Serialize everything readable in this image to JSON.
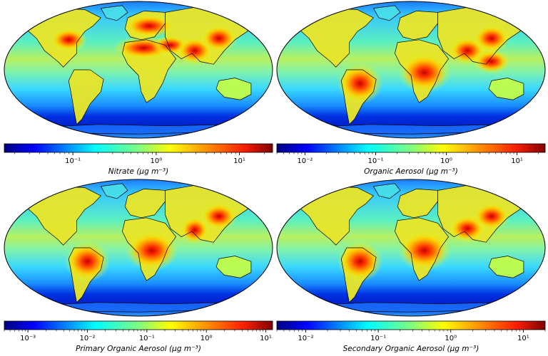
{
  "panels": [
    {
      "id": "nitrate",
      "label": "Nitrate (μg m⁻³)",
      "ticks": [
        {
          "text": "10⁻¹",
          "value": 0.1
        },
        {
          "text": "10⁰",
          "value": 1
        },
        {
          "text": "10¹",
          "value": 10
        }
      ],
      "scale_min": 0.015,
      "scale_max": 25,
      "hotspots": [
        "Europe",
        "North Africa",
        "Middle East",
        "South Asia",
        "East China",
        "Eastern United States"
      ]
    },
    {
      "id": "organic-aerosol",
      "label": "Organic Aerosol (μg m⁻³)",
      "ticks": [
        {
          "text": "10⁻²",
          "value": 0.01
        },
        {
          "text": "10⁻¹",
          "value": 0.1
        },
        {
          "text": "10⁰",
          "value": 1
        },
        {
          "text": "10¹",
          "value": 10
        }
      ],
      "scale_min": 0.004,
      "scale_max": 25,
      "hotspots": [
        "Central Africa",
        "South America",
        "South Asia",
        "East China",
        "Southeast Asia"
      ]
    },
    {
      "id": "primary-organic-aerosol",
      "label": "Primary Organic Aerosol (μg m⁻³)",
      "ticks": [
        {
          "text": "10⁻³",
          "value": 0.001
        },
        {
          "text": "10⁻²",
          "value": 0.01
        },
        {
          "text": "10⁻¹",
          "value": 0.1
        },
        {
          "text": "10⁰",
          "value": 1
        },
        {
          "text": "10¹",
          "value": 10
        }
      ],
      "scale_min": 0.0004,
      "scale_max": 13,
      "hotspots": [
        "Central Africa",
        "South America",
        "India",
        "East China"
      ]
    },
    {
      "id": "secondary-organic-aerosol",
      "label": "Secondary Organic Aerosol (μg m⁻³)",
      "ticks": [
        {
          "text": "10⁻²",
          "value": 0.01
        },
        {
          "text": "10⁻¹",
          "value": 0.1
        },
        {
          "text": "10⁰",
          "value": 1
        },
        {
          "text": "10¹",
          "value": 10
        }
      ],
      "scale_min": 0.004,
      "scale_max": 20,
      "hotspots": [
        "Central Africa",
        "South America",
        "South Asia",
        "East China"
      ]
    }
  ],
  "colormap": "jet",
  "projection": "Robinson"
}
